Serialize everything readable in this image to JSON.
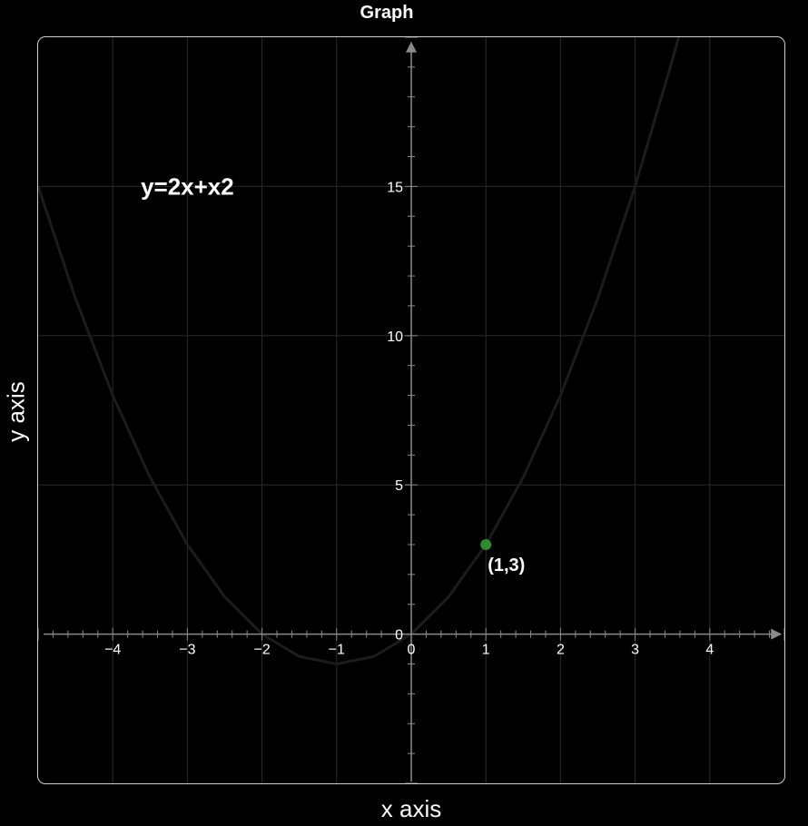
{
  "chart_data": {
    "type": "line",
    "title": "Graph",
    "xlabel": "x axis",
    "ylabel": "y axis",
    "xlim": [
      -5,
      5
    ],
    "ylim": [
      -5,
      20
    ],
    "grid": true,
    "x_ticks": [
      -4,
      -3,
      -2,
      -1,
      0,
      1,
      2,
      3,
      4
    ],
    "x_tick_labels": [
      "−4",
      "−3",
      "−2",
      "−1",
      "0",
      "1",
      "2",
      "3",
      "4"
    ],
    "y_ticks": [
      0,
      5,
      10,
      15
    ],
    "y_tick_labels": [
      "0",
      "5",
      "10",
      "15"
    ],
    "equation": "y=2x+x2",
    "series": [
      {
        "x": [
          -5,
          -4.5,
          -4,
          -3.5,
          -3,
          -2.5,
          -2,
          -1.5,
          -1,
          -0.5,
          0,
          0.5,
          1,
          1.5,
          2,
          2.5,
          3,
          3.5,
          3.6
        ],
        "y": [
          15,
          11.25,
          8,
          5.25,
          3,
          1.25,
          0,
          -0.75,
          -1,
          -0.75,
          0,
          1.25,
          3,
          5.25,
          8,
          11.25,
          15,
          19.25,
          20.16
        ]
      }
    ],
    "highlight_point": {
      "x": 1,
      "y": 3,
      "label": "(1,3)"
    }
  },
  "colors": {
    "background": "#000000",
    "grid": "#2a2a2a",
    "axis": "#8a8a8a",
    "curve": "#1c1c1c",
    "point": "#2e8b2e",
    "text": "#ffffff",
    "frame": "#cfcfcf"
  }
}
